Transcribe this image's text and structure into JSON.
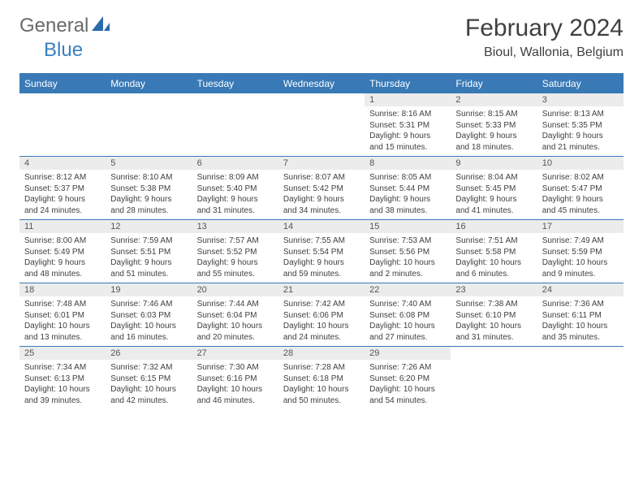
{
  "branding": {
    "logo_part1": "General",
    "logo_part2": "Blue",
    "logo_text_color": "#6a6a6a",
    "logo_accent_color": "#3a7fbf"
  },
  "header": {
    "month_title": "February 2024",
    "location": "Bioul, Wallonia, Belgium"
  },
  "colors": {
    "header_bar": "#3879b6",
    "header_text": "#ffffff",
    "daynum_bg": "#ececec",
    "daynum_text": "#555555",
    "body_text": "#404040",
    "border": "#3879b6",
    "page_bg": "#ffffff"
  },
  "daynames": [
    "Sunday",
    "Monday",
    "Tuesday",
    "Wednesday",
    "Thursday",
    "Friday",
    "Saturday"
  ],
  "weeks": [
    [
      {
        "day": "",
        "sunrise": "",
        "sunset": "",
        "daylight1": "",
        "daylight2": ""
      },
      {
        "day": "",
        "sunrise": "",
        "sunset": "",
        "daylight1": "",
        "daylight2": ""
      },
      {
        "day": "",
        "sunrise": "",
        "sunset": "",
        "daylight1": "",
        "daylight2": ""
      },
      {
        "day": "",
        "sunrise": "",
        "sunset": "",
        "daylight1": "",
        "daylight2": ""
      },
      {
        "day": "1",
        "sunrise": "Sunrise: 8:16 AM",
        "sunset": "Sunset: 5:31 PM",
        "daylight1": "Daylight: 9 hours",
        "daylight2": "and 15 minutes."
      },
      {
        "day": "2",
        "sunrise": "Sunrise: 8:15 AM",
        "sunset": "Sunset: 5:33 PM",
        "daylight1": "Daylight: 9 hours",
        "daylight2": "and 18 minutes."
      },
      {
        "day": "3",
        "sunrise": "Sunrise: 8:13 AM",
        "sunset": "Sunset: 5:35 PM",
        "daylight1": "Daylight: 9 hours",
        "daylight2": "and 21 minutes."
      }
    ],
    [
      {
        "day": "4",
        "sunrise": "Sunrise: 8:12 AM",
        "sunset": "Sunset: 5:37 PM",
        "daylight1": "Daylight: 9 hours",
        "daylight2": "and 24 minutes."
      },
      {
        "day": "5",
        "sunrise": "Sunrise: 8:10 AM",
        "sunset": "Sunset: 5:38 PM",
        "daylight1": "Daylight: 9 hours",
        "daylight2": "and 28 minutes."
      },
      {
        "day": "6",
        "sunrise": "Sunrise: 8:09 AM",
        "sunset": "Sunset: 5:40 PM",
        "daylight1": "Daylight: 9 hours",
        "daylight2": "and 31 minutes."
      },
      {
        "day": "7",
        "sunrise": "Sunrise: 8:07 AM",
        "sunset": "Sunset: 5:42 PM",
        "daylight1": "Daylight: 9 hours",
        "daylight2": "and 34 minutes."
      },
      {
        "day": "8",
        "sunrise": "Sunrise: 8:05 AM",
        "sunset": "Sunset: 5:44 PM",
        "daylight1": "Daylight: 9 hours",
        "daylight2": "and 38 minutes."
      },
      {
        "day": "9",
        "sunrise": "Sunrise: 8:04 AM",
        "sunset": "Sunset: 5:45 PM",
        "daylight1": "Daylight: 9 hours",
        "daylight2": "and 41 minutes."
      },
      {
        "day": "10",
        "sunrise": "Sunrise: 8:02 AM",
        "sunset": "Sunset: 5:47 PM",
        "daylight1": "Daylight: 9 hours",
        "daylight2": "and 45 minutes."
      }
    ],
    [
      {
        "day": "11",
        "sunrise": "Sunrise: 8:00 AM",
        "sunset": "Sunset: 5:49 PM",
        "daylight1": "Daylight: 9 hours",
        "daylight2": "and 48 minutes."
      },
      {
        "day": "12",
        "sunrise": "Sunrise: 7:59 AM",
        "sunset": "Sunset: 5:51 PM",
        "daylight1": "Daylight: 9 hours",
        "daylight2": "and 51 minutes."
      },
      {
        "day": "13",
        "sunrise": "Sunrise: 7:57 AM",
        "sunset": "Sunset: 5:52 PM",
        "daylight1": "Daylight: 9 hours",
        "daylight2": "and 55 minutes."
      },
      {
        "day": "14",
        "sunrise": "Sunrise: 7:55 AM",
        "sunset": "Sunset: 5:54 PM",
        "daylight1": "Daylight: 9 hours",
        "daylight2": "and 59 minutes."
      },
      {
        "day": "15",
        "sunrise": "Sunrise: 7:53 AM",
        "sunset": "Sunset: 5:56 PM",
        "daylight1": "Daylight: 10 hours",
        "daylight2": "and 2 minutes."
      },
      {
        "day": "16",
        "sunrise": "Sunrise: 7:51 AM",
        "sunset": "Sunset: 5:58 PM",
        "daylight1": "Daylight: 10 hours",
        "daylight2": "and 6 minutes."
      },
      {
        "day": "17",
        "sunrise": "Sunrise: 7:49 AM",
        "sunset": "Sunset: 5:59 PM",
        "daylight1": "Daylight: 10 hours",
        "daylight2": "and 9 minutes."
      }
    ],
    [
      {
        "day": "18",
        "sunrise": "Sunrise: 7:48 AM",
        "sunset": "Sunset: 6:01 PM",
        "daylight1": "Daylight: 10 hours",
        "daylight2": "and 13 minutes."
      },
      {
        "day": "19",
        "sunrise": "Sunrise: 7:46 AM",
        "sunset": "Sunset: 6:03 PM",
        "daylight1": "Daylight: 10 hours",
        "daylight2": "and 16 minutes."
      },
      {
        "day": "20",
        "sunrise": "Sunrise: 7:44 AM",
        "sunset": "Sunset: 6:04 PM",
        "daylight1": "Daylight: 10 hours",
        "daylight2": "and 20 minutes."
      },
      {
        "day": "21",
        "sunrise": "Sunrise: 7:42 AM",
        "sunset": "Sunset: 6:06 PM",
        "daylight1": "Daylight: 10 hours",
        "daylight2": "and 24 minutes."
      },
      {
        "day": "22",
        "sunrise": "Sunrise: 7:40 AM",
        "sunset": "Sunset: 6:08 PM",
        "daylight1": "Daylight: 10 hours",
        "daylight2": "and 27 minutes."
      },
      {
        "day": "23",
        "sunrise": "Sunrise: 7:38 AM",
        "sunset": "Sunset: 6:10 PM",
        "daylight1": "Daylight: 10 hours",
        "daylight2": "and 31 minutes."
      },
      {
        "day": "24",
        "sunrise": "Sunrise: 7:36 AM",
        "sunset": "Sunset: 6:11 PM",
        "daylight1": "Daylight: 10 hours",
        "daylight2": "and 35 minutes."
      }
    ],
    [
      {
        "day": "25",
        "sunrise": "Sunrise: 7:34 AM",
        "sunset": "Sunset: 6:13 PM",
        "daylight1": "Daylight: 10 hours",
        "daylight2": "and 39 minutes."
      },
      {
        "day": "26",
        "sunrise": "Sunrise: 7:32 AM",
        "sunset": "Sunset: 6:15 PM",
        "daylight1": "Daylight: 10 hours",
        "daylight2": "and 42 minutes."
      },
      {
        "day": "27",
        "sunrise": "Sunrise: 7:30 AM",
        "sunset": "Sunset: 6:16 PM",
        "daylight1": "Daylight: 10 hours",
        "daylight2": "and 46 minutes."
      },
      {
        "day": "28",
        "sunrise": "Sunrise: 7:28 AM",
        "sunset": "Sunset: 6:18 PM",
        "daylight1": "Daylight: 10 hours",
        "daylight2": "and 50 minutes."
      },
      {
        "day": "29",
        "sunrise": "Sunrise: 7:26 AM",
        "sunset": "Sunset: 6:20 PM",
        "daylight1": "Daylight: 10 hours",
        "daylight2": "and 54 minutes."
      },
      {
        "day": "",
        "sunrise": "",
        "sunset": "",
        "daylight1": "",
        "daylight2": ""
      },
      {
        "day": "",
        "sunrise": "",
        "sunset": "",
        "daylight1": "",
        "daylight2": ""
      }
    ]
  ]
}
